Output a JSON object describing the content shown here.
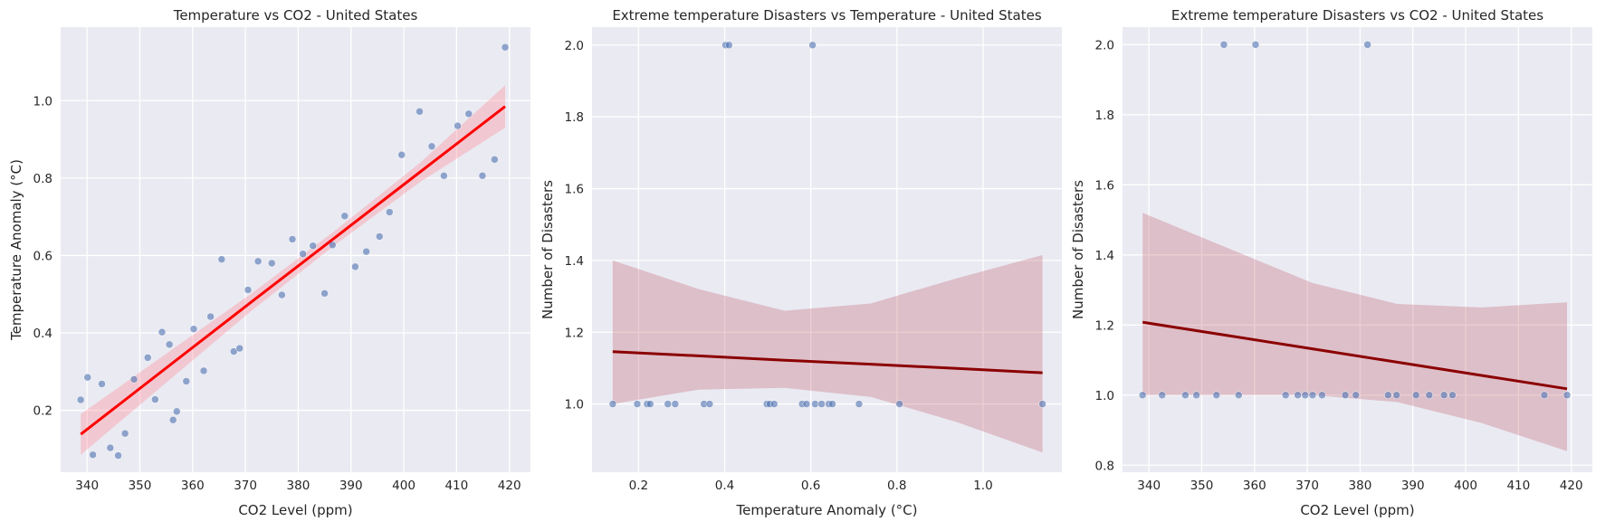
{
  "chart_data": [
    {
      "type": "scatter",
      "title": "Temperature vs CO2 - United States",
      "xlabel": "CO2 Level (ppm)",
      "ylabel": "Temperature Anomaly (°C)",
      "xlim": [
        335,
        424
      ],
      "ylim": [
        0.04,
        1.19
      ],
      "xticks": [
        340,
        350,
        360,
        370,
        380,
        390,
        400,
        410,
        420
      ],
      "xtick_labels": [
        "340",
        "350",
        "360",
        "370",
        "380",
        "390",
        "400",
        "410",
        "420"
      ],
      "yticks": [
        0.2,
        0.4,
        0.6,
        0.8,
        1.0
      ],
      "ytick_labels": [
        "0.2",
        "0.4",
        "0.6",
        "0.8",
        "1.0"
      ],
      "grid": true,
      "point_color": "#4c72b0",
      "line_color": "#ff0000",
      "band_color": "#ff8a96",
      "points": [
        {
          "x": 338.8,
          "y": 0.227
        },
        {
          "x": 340.1,
          "y": 0.285
        },
        {
          "x": 341.1,
          "y": 0.085
        },
        {
          "x": 342.8,
          "y": 0.268
        },
        {
          "x": 344.4,
          "y": 0.103
        },
        {
          "x": 345.9,
          "y": 0.083
        },
        {
          "x": 347.2,
          "y": 0.14
        },
        {
          "x": 348.9,
          "y": 0.28
        },
        {
          "x": 351.5,
          "y": 0.336
        },
        {
          "x": 352.9,
          "y": 0.228
        },
        {
          "x": 354.2,
          "y": 0.402
        },
        {
          "x": 355.6,
          "y": 0.37
        },
        {
          "x": 356.3,
          "y": 0.175
        },
        {
          "x": 357.0,
          "y": 0.197
        },
        {
          "x": 358.8,
          "y": 0.275
        },
        {
          "x": 360.2,
          "y": 0.41
        },
        {
          "x": 362.1,
          "y": 0.302
        },
        {
          "x": 363.4,
          "y": 0.442
        },
        {
          "x": 365.5,
          "y": 0.59
        },
        {
          "x": 367.8,
          "y": 0.352
        },
        {
          "x": 368.9,
          "y": 0.36
        },
        {
          "x": 370.5,
          "y": 0.511
        },
        {
          "x": 372.4,
          "y": 0.585
        },
        {
          "x": 375.0,
          "y": 0.58
        },
        {
          "x": 376.9,
          "y": 0.498
        },
        {
          "x": 378.9,
          "y": 0.642
        },
        {
          "x": 380.9,
          "y": 0.604
        },
        {
          "x": 382.8,
          "y": 0.625
        },
        {
          "x": 385.0,
          "y": 0.502
        },
        {
          "x": 386.5,
          "y": 0.627
        },
        {
          "x": 388.8,
          "y": 0.702
        },
        {
          "x": 390.8,
          "y": 0.571
        },
        {
          "x": 392.9,
          "y": 0.61
        },
        {
          "x": 395.4,
          "y": 0.649
        },
        {
          "x": 397.3,
          "y": 0.712
        },
        {
          "x": 399.6,
          "y": 0.86
        },
        {
          "x": 403.0,
          "y": 0.972
        },
        {
          "x": 405.3,
          "y": 0.882
        },
        {
          "x": 407.6,
          "y": 0.806
        },
        {
          "x": 410.2,
          "y": 0.935
        },
        {
          "x": 412.3,
          "y": 0.966
        },
        {
          "x": 414.9,
          "y": 0.806
        },
        {
          "x": 417.2,
          "y": 0.848
        },
        {
          "x": 419.2,
          "y": 1.138
        }
      ],
      "regression": {
        "x": [
          338.8,
          354.88,
          370.96,
          387.04,
          403.12,
          419.2
        ],
        "y": [
          0.138,
          0.308,
          0.478,
          0.647,
          0.816,
          0.985
        ],
        "y_lower": [
          0.085,
          0.27,
          0.455,
          0.628,
          0.79,
          0.93
        ],
        "y_upper": [
          0.19,
          0.345,
          0.5,
          0.665,
          0.84,
          1.04
        ]
      }
    },
    {
      "type": "scatter",
      "title": "Extreme temperature Disasters vs Temperature - United States",
      "xlabel": "Temperature Anomaly (°C)",
      "ylabel": "Number of Disasters",
      "xlim": [
        0.092,
        1.183
      ],
      "ylim": [
        0.81,
        2.05
      ],
      "xticks": [
        0.2,
        0.4,
        0.6,
        0.8,
        1.0
      ],
      "xtick_labels": [
        "0.2",
        "0.4",
        "0.6",
        "0.8",
        "1.0"
      ],
      "yticks": [
        1.0,
        1.2,
        1.4,
        1.6,
        1.8,
        2.0
      ],
      "ytick_labels": [
        "1.0",
        "1.2",
        "1.4",
        "1.6",
        "1.8",
        "2.0"
      ],
      "grid": true,
      "point_color": "#4c72b0",
      "line_color": "#8b0000",
      "band_color": "#c7717f",
      "points": [
        {
          "x": 0.14,
          "y": 1
        },
        {
          "x": 0.197,
          "y": 1
        },
        {
          "x": 0.22,
          "y": 1
        },
        {
          "x": 0.227,
          "y": 1
        },
        {
          "x": 0.268,
          "y": 1
        },
        {
          "x": 0.285,
          "y": 1
        },
        {
          "x": 0.352,
          "y": 1
        },
        {
          "x": 0.365,
          "y": 1
        },
        {
          "x": 0.402,
          "y": 2
        },
        {
          "x": 0.41,
          "y": 2
        },
        {
          "x": 0.498,
          "y": 1
        },
        {
          "x": 0.505,
          "y": 1
        },
        {
          "x": 0.515,
          "y": 1
        },
        {
          "x": 0.58,
          "y": 1
        },
        {
          "x": 0.59,
          "y": 1
        },
        {
          "x": 0.604,
          "y": 2
        },
        {
          "x": 0.61,
          "y": 1
        },
        {
          "x": 0.625,
          "y": 1
        },
        {
          "x": 0.642,
          "y": 1
        },
        {
          "x": 0.65,
          "y": 1
        },
        {
          "x": 0.712,
          "y": 1
        },
        {
          "x": 0.806,
          "y": 1
        },
        {
          "x": 1.138,
          "y": 1
        }
      ],
      "regression": {
        "x": [
          0.14,
          0.3396,
          0.5392,
          0.7388,
          0.9384,
          1.138
        ],
        "y": [
          1.146,
          1.134,
          1.122,
          1.111,
          1.099,
          1.087
        ],
        "y_lower": [
          1.0,
          1.04,
          1.045,
          1.02,
          0.95,
          0.865
        ],
        "y_upper": [
          1.4,
          1.32,
          1.26,
          1.28,
          1.35,
          1.415
        ]
      }
    },
    {
      "type": "scatter",
      "title": "Extreme temperature Disasters vs CO2 - United States",
      "xlabel": "CO2 Level (ppm)",
      "ylabel": "Number of Disasters",
      "xlim": [
        335,
        424
      ],
      "ylim": [
        0.78,
        2.05
      ],
      "xticks": [
        340,
        350,
        360,
        370,
        380,
        390,
        400,
        410,
        420
      ],
      "xtick_labels": [
        "340",
        "350",
        "360",
        "370",
        "380",
        "390",
        "400",
        "410",
        "420"
      ],
      "yticks": [
        0.8,
        1.0,
        1.2,
        1.4,
        1.6,
        1.8,
        2.0
      ],
      "ytick_labels": [
        "0.8",
        "1.0",
        "1.2",
        "1.4",
        "1.6",
        "1.8",
        "2.0"
      ],
      "grid": true,
      "point_color": "#4c72b0",
      "line_color": "#8b0000",
      "band_color": "#c7717f",
      "points": [
        {
          "x": 338.8,
          "y": 1
        },
        {
          "x": 342.5,
          "y": 1
        },
        {
          "x": 346.9,
          "y": 1
        },
        {
          "x": 349.0,
          "y": 1
        },
        {
          "x": 352.8,
          "y": 1
        },
        {
          "x": 354.2,
          "y": 2
        },
        {
          "x": 357.0,
          "y": 1
        },
        {
          "x": 360.2,
          "y": 2
        },
        {
          "x": 365.9,
          "y": 1
        },
        {
          "x": 368.2,
          "y": 1
        },
        {
          "x": 369.6,
          "y": 1
        },
        {
          "x": 371.0,
          "y": 1
        },
        {
          "x": 372.8,
          "y": 1
        },
        {
          "x": 377.2,
          "y": 1
        },
        {
          "x": 379.2,
          "y": 1
        },
        {
          "x": 381.4,
          "y": 2
        },
        {
          "x": 385.3,
          "y": 1
        },
        {
          "x": 386.9,
          "y": 1
        },
        {
          "x": 390.6,
          "y": 1
        },
        {
          "x": 393.1,
          "y": 1
        },
        {
          "x": 395.9,
          "y": 1
        },
        {
          "x": 397.5,
          "y": 1
        },
        {
          "x": 414.9,
          "y": 1
        },
        {
          "x": 419.2,
          "y": 1
        }
      ],
      "regression": {
        "x": [
          338.8,
          354.88,
          370.96,
          387.04,
          403.12,
          419.2
        ],
        "y": [
          1.208,
          1.17,
          1.132,
          1.094,
          1.056,
          1.018
        ],
        "y_lower": [
          1.0,
          1.0,
          1.0,
          0.98,
          0.92,
          0.84
        ],
        "y_upper": [
          1.52,
          1.42,
          1.32,
          1.26,
          1.25,
          1.265
        ]
      }
    }
  ]
}
